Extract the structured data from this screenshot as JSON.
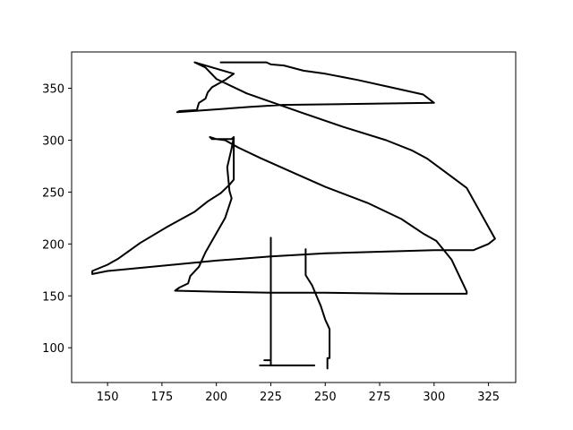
{
  "chart_data": {
    "type": "line",
    "title": "",
    "xlabel": "",
    "ylabel": "",
    "xlim": [
      133.5,
      337.5
    ],
    "ylim": [
      66.5,
      385
    ],
    "x_ticks": [
      150,
      175,
      200,
      225,
      250,
      275,
      300,
      325
    ],
    "y_ticks": [
      100,
      150,
      200,
      250,
      300,
      350
    ],
    "grid": false,
    "legend": "none",
    "line_color": "#000000",
    "series": [
      {
        "values": [
          [
            202,
            375
          ],
          [
            223,
            375
          ],
          [
            225,
            373
          ],
          [
            231,
            372
          ],
          [
            240,
            367
          ],
          [
            250,
            364
          ],
          [
            265,
            358
          ],
          [
            280,
            351
          ],
          [
            295,
            344
          ],
          [
            300,
            336
          ],
          [
            230,
            334
          ],
          [
            215,
            332
          ],
          [
            182,
            327
          ],
          [
            183,
            328
          ],
          [
            191,
            329
          ],
          [
            192,
            336
          ],
          [
            195,
            340
          ],
          [
            196,
            346
          ],
          [
            198,
            351
          ],
          [
            204,
            358
          ],
          [
            208,
            364
          ],
          [
            190,
            375
          ],
          [
            195,
            370
          ],
          [
            200,
            359
          ],
          [
            205,
            354
          ],
          [
            214,
            345
          ],
          [
            240,
            326
          ],
          [
            258,
            313
          ],
          [
            278,
            300
          ],
          [
            290,
            290
          ],
          [
            297,
            282
          ],
          [
            315,
            254
          ],
          [
            328,
            205
          ],
          [
            325,
            200
          ],
          [
            318,
            194
          ],
          [
            300,
            194
          ],
          [
            250,
            191
          ],
          [
            225,
            188
          ],
          [
            200,
            184
          ],
          [
            150,
            174
          ],
          [
            143,
            171
          ],
          [
            143,
            174
          ],
          [
            150,
            180
          ],
          [
            155,
            186
          ],
          [
            165,
            201
          ],
          [
            177,
            216
          ],
          [
            190,
            231
          ],
          [
            196,
            241
          ],
          [
            202,
            249
          ],
          [
            206,
            257
          ],
          [
            208,
            262
          ],
          [
            208,
            303
          ],
          [
            207,
            301
          ],
          [
            198,
            301
          ],
          [
            197,
            303
          ],
          [
            200,
            301
          ],
          [
            204,
            300
          ],
          [
            210,
            293
          ],
          [
            220,
            283
          ],
          [
            235,
            269
          ],
          [
            250,
            255
          ],
          [
            270,
            239
          ],
          [
            285,
            224
          ],
          [
            295,
            210
          ],
          [
            301,
            203
          ],
          [
            308,
            185
          ],
          [
            315,
            154
          ],
          [
            315,
            152
          ],
          [
            285,
            152
          ],
          [
            250,
            153
          ],
          [
            225,
            153
          ],
          [
            200,
            154
          ],
          [
            181,
            155
          ],
          [
            183,
            158
          ],
          [
            187,
            162
          ],
          [
            188,
            169
          ],
          [
            192,
            178
          ],
          [
            195,
            192
          ],
          [
            201,
            214
          ],
          [
            204,
            225
          ],
          [
            207,
            244
          ],
          [
            206,
            251
          ],
          [
            205,
            274
          ],
          [
            207,
            292
          ],
          [
            208,
            303
          ]
        ]
      },
      {
        "values": [
          [
            225,
            206
          ],
          [
            225,
            83
          ],
          [
            220,
            83
          ],
          [
            245,
            83
          ]
        ]
      },
      {
        "values": [
          [
            241,
            195
          ],
          [
            241,
            170
          ],
          [
            244,
            160
          ],
          [
            246,
            150
          ],
          [
            248,
            140
          ],
          [
            250,
            127
          ],
          [
            252,
            118
          ],
          [
            252,
            90
          ],
          [
            251,
            90
          ],
          [
            251,
            80
          ]
        ]
      },
      {
        "values": [
          [
            225,
            88
          ],
          [
            222,
            88
          ]
        ]
      }
    ]
  }
}
